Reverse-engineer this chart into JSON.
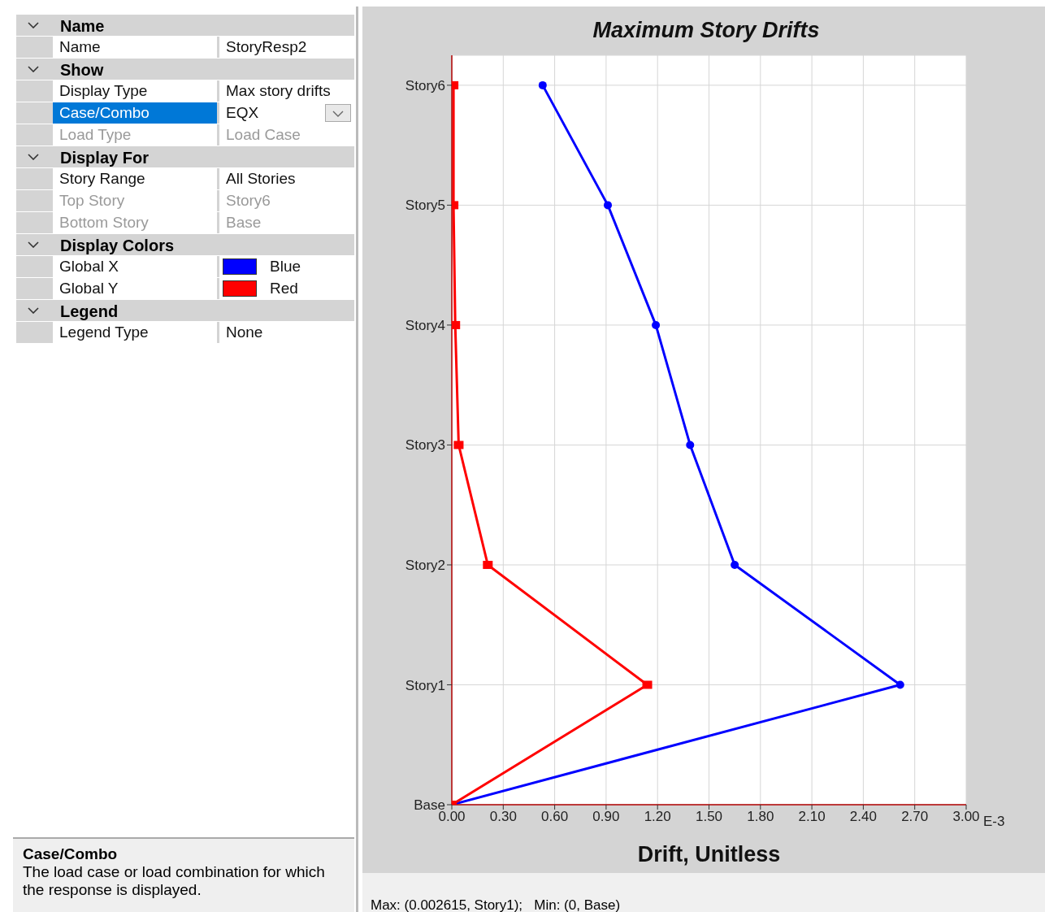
{
  "chart_data": [
    {
      "type": "other",
      "annotations": [
        "Name",
        "Name",
        "StoryResp2",
        "Show",
        "Display Type",
        "Max story drifts",
        "Case/Combo",
        "EQX",
        "Load Type",
        "Load Case",
        "Display For",
        "Story Range",
        "All Stories",
        "Top Story",
        "Story6",
        "Bottom Story",
        "Base",
        "Display Colors",
        "Global X",
        "Blue",
        "Global Y",
        "Red",
        "Legend",
        "Legend Type",
        "None",
        "Case/Combo",
        "The load case or load combination for which the response is displayed."
      ]
    },
    {
      "type": "line",
      "title": "Maximum Story Drifts",
      "xlabel": "Drift, Unitless",
      "orientation": "horizontal",
      "categories": [
        "Story6",
        "Story5",
        "Story4",
        "Story3",
        "Story2",
        "Story1",
        "Base"
      ],
      "series": [
        {
          "color": "#0000ff",
          "marker": "circle",
          "values": [
            0.53,
            0.91,
            1.19,
            1.39,
            1.65,
            2.615,
            0
          ]
        },
        {
          "color": "#ff0000",
          "marker": "square",
          "values": [
            0.01,
            0.01,
            0.02,
            0.04,
            0.21,
            1.14,
            0
          ]
        }
      ],
      "xlim": [
        0,
        3
      ],
      "xticks": [
        {
          "value": 0,
          "label": "0.00"
        },
        {
          "value": 0.3,
          "label": "0.30"
        },
        {
          "value": 0.6,
          "label": "0.60"
        },
        {
          "value": 0.9,
          "label": "0.90"
        },
        {
          "value": 1.2,
          "label": "1.20"
        },
        {
          "value": 1.5,
          "label": "1.50"
        },
        {
          "value": 1.8,
          "label": "1.80"
        },
        {
          "value": 2.1,
          "label": "2.10"
        },
        {
          "value": 2.4,
          "label": "2.40"
        },
        {
          "value": 2.7,
          "label": "2.70"
        },
        {
          "value": 3,
          "label": "3.00"
        }
      ],
      "grid": true,
      "annotations": [
        "E-3",
        "Max: (0.002615, Story1);   Min: (0, Base)"
      ]
    }
  ]
}
